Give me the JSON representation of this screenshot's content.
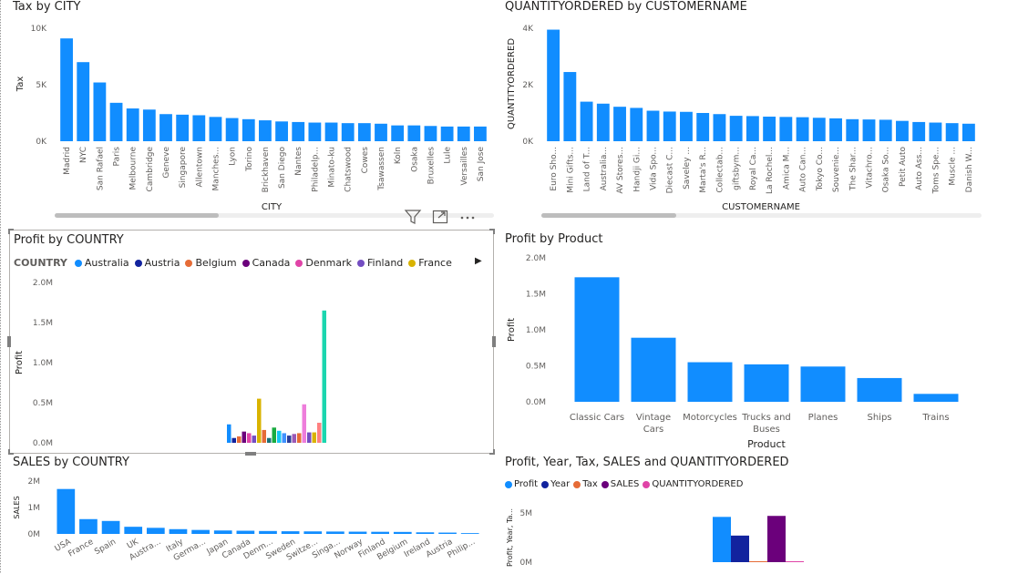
{
  "colors": {
    "bar": "#118DFF",
    "tick": "#605e5c"
  },
  "visual_header_icons": [
    "filter-icon",
    "focus-mode-icon",
    "more-options-icon"
  ],
  "chart_data": [
    {
      "id": "tax_by_city",
      "type": "bar",
      "title": "Tax by CITY",
      "xlabel": "CITY",
      "ylabel": "Tax",
      "ylim": [
        0,
        10000
      ],
      "yticks": [
        "0K",
        "5K",
        "10K"
      ],
      "yticks_values": [
        0,
        5000,
        10000
      ],
      "categories": [
        "Madrid",
        "NYC",
        "San Rafael",
        "Paris",
        "Melbourne",
        "Cambridge",
        "Geneve",
        "Singapore",
        "Allentown",
        "Manches...",
        "Lyon",
        "Torino",
        "Brickhaven",
        "San Diego",
        "Nantes",
        "Philadelp...",
        "Minato-ku",
        "Chatswood",
        "Cowes",
        "Tsawassen",
        "Koln",
        "Osaka",
        "Bruxelles",
        "Lule",
        "Versailles",
        "San Jose"
      ],
      "values": [
        9100,
        7000,
        5200,
        3400,
        2900,
        2800,
        2400,
        2350,
        2300,
        2150,
        2050,
        1950,
        1850,
        1750,
        1700,
        1650,
        1650,
        1600,
        1600,
        1550,
        1400,
        1400,
        1350,
        1300,
        1300,
        1300
      ],
      "grid": false
    },
    {
      "id": "qty_by_customer",
      "type": "bar",
      "title": "QUANTITYORDERED by CUSTOMERNAME",
      "xlabel": "CUSTOMERNAME",
      "ylabel": "QUANTITYORDERED",
      "ylim": [
        0,
        4000
      ],
      "yticks": [
        "0K",
        "2K",
        "4K"
      ],
      "yticks_values": [
        0,
        2000,
        4000
      ],
      "categories": [
        "Euro Sho...",
        "Mini Gifts...",
        "Land of T...",
        "Australia...",
        "AV Stores...",
        "Handji Gi...",
        "Vida Spo...",
        "Diecast C...",
        "Saveley ...",
        "Marta's R...",
        "Collectab...",
        "giftsbym...",
        "Royal Ca...",
        "La Rochel...",
        "Amica M...",
        "Auto Can...",
        "Tokyo Co...",
        "Souvenie...",
        "The Shar...",
        "Vitachro...",
        "Osaka So...",
        "Petit Auto",
        "Auto Ass...",
        "Toms Spe...",
        "Muscle ...",
        "Danish W..."
      ],
      "values": [
        3950,
        2450,
        1400,
        1330,
        1220,
        1180,
        1080,
        1050,
        1040,
        1000,
        960,
        900,
        890,
        870,
        860,
        850,
        830,
        810,
        780,
        770,
        760,
        720,
        680,
        660,
        640,
        620
      ],
      "grid": false
    },
    {
      "id": "profit_by_country",
      "type": "bar",
      "title": "Profit by COUNTRY",
      "ylabel": "Profit",
      "ylim": [
        0,
        2000000
      ],
      "yticks": [
        "0.0M",
        "0.5M",
        "1.0M",
        "1.5M",
        "2.0M"
      ],
      "yticks_values": [
        0,
        500000,
        1000000,
        1500000,
        2000000
      ],
      "legend_title": "COUNTRY",
      "legend_position": "top",
      "series": [
        {
          "name": "Australia",
          "color": "#118DFF"
        },
        {
          "name": "Austria",
          "color": "#12239E"
        },
        {
          "name": "Belgium",
          "color": "#E66C37"
        },
        {
          "name": "Canada",
          "color": "#6B007B"
        },
        {
          "name": "Denmark",
          "color": "#E044A7"
        },
        {
          "name": "Finland",
          "color": "#744EC2"
        },
        {
          "name": "France",
          "color": "#D9B300"
        }
      ],
      "bar_values": [
        230000,
        60000,
        80000,
        140000,
        120000,
        90000,
        550000,
        160000,
        60000,
        190000,
        150000,
        120000,
        90000,
        110000,
        120000,
        480000,
        130000,
        130000,
        250000,
        1650000
      ],
      "bar_colors": [
        "#118DFF",
        "#12239E",
        "#E66C37",
        "#6B007B",
        "#E044A7",
        "#744EC2",
        "#D9B300",
        "#E66C37",
        "#197278",
        "#1AAB40",
        "#15C6F4",
        "#4092FF",
        "#2B3E9A",
        "#9B59B6",
        "#E66C37",
        "#EE7DDB",
        "#744EC2",
        "#D9B300",
        "#FF8080",
        "#1BD6AF"
      ]
    },
    {
      "id": "profit_by_product",
      "type": "bar",
      "title": "Profit by Product",
      "xlabel": "Product",
      "ylabel": "Profit",
      "ylim": [
        0,
        2000000
      ],
      "yticks": [
        "0.0M",
        "0.5M",
        "1.0M",
        "1.5M",
        "2.0M"
      ],
      "yticks_values": [
        0,
        500000,
        1000000,
        1500000,
        2000000
      ],
      "categories": [
        [
          "Classic Cars"
        ],
        [
          "Vintage",
          "Cars"
        ],
        [
          "Motorcycles"
        ],
        [
          "Trucks and",
          "Buses"
        ],
        [
          "Planes"
        ],
        [
          "Ships"
        ],
        [
          "Trains"
        ]
      ],
      "values": [
        1730000,
        890000,
        550000,
        520000,
        490000,
        330000,
        110000
      ]
    },
    {
      "id": "sales_by_country",
      "type": "bar",
      "title": "SALES by COUNTRY",
      "ylabel": "SALES",
      "ylim": [
        0,
        2000000
      ],
      "yticks": [
        "0M",
        "1M",
        "2M"
      ],
      "yticks_values": [
        0,
        1000000,
        2000000
      ],
      "categories": [
        "USA",
        "France",
        "Spain",
        "UK",
        "Austra...",
        "Italy",
        "Germa...",
        "Japan",
        "Canada",
        "Denm...",
        "Sweden",
        "Switze...",
        "Singa...",
        "Norway",
        "Finland",
        "Belgium",
        "Ireland",
        "Austria",
        "Philip..."
      ],
      "values": [
        1700000,
        560000,
        490000,
        270000,
        230000,
        180000,
        150000,
        130000,
        120000,
        110000,
        100000,
        95000,
        90000,
        85000,
        80000,
        75000,
        60000,
        50000,
        30000
      ]
    },
    {
      "id": "profit_year_tax",
      "type": "bar",
      "title": "Profit, Year, Tax, SALES and QUANTITYORDERED",
      "ylabel": "Profit, Year, Ta...",
      "ylim": [
        0,
        5000000
      ],
      "yticks": [
        "0M",
        "5M"
      ],
      "yticks_values": [
        0,
        5000000
      ],
      "legend_position": "top-left",
      "series": [
        {
          "name": "Profit",
          "color": "#118DFF",
          "value": 4600000
        },
        {
          "name": "Year",
          "color": "#12239E",
          "value": 2700000
        },
        {
          "name": "Tax",
          "color": "#E66C37",
          "value": 60000
        },
        {
          "name": "SALES",
          "color": "#6B007B",
          "value": 4700000
        },
        {
          "name": "QUANTITYORDERED",
          "color": "#E044A7",
          "value": 40000
        }
      ]
    }
  ]
}
